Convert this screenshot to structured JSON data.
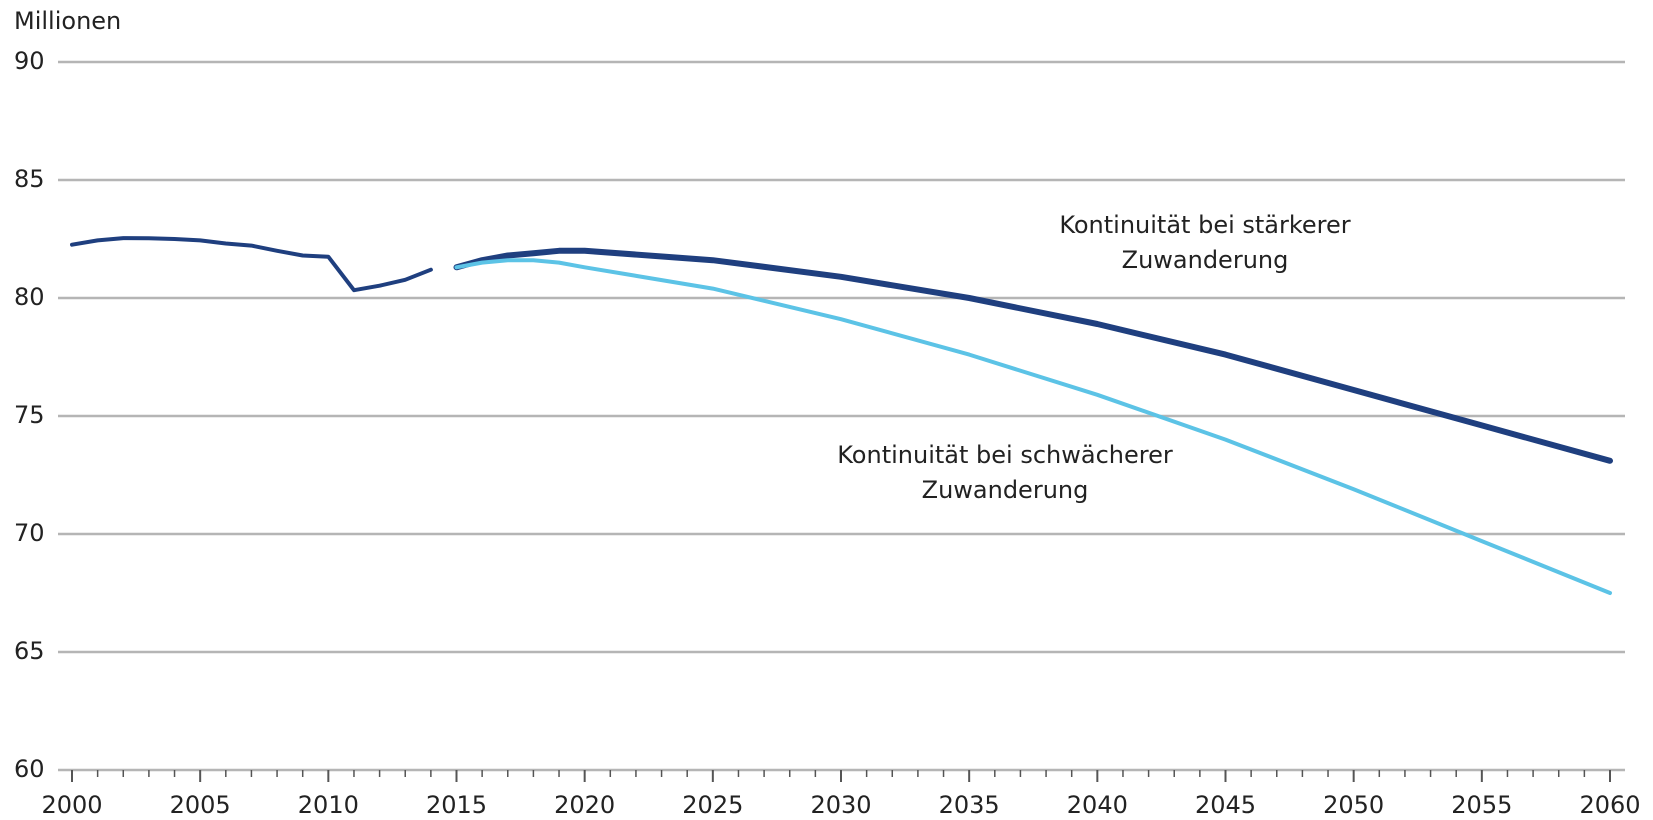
{
  "chart_data": {
    "type": "line",
    "y_label": "Millionen",
    "xlim": [
      2000,
      2060
    ],
    "xticks": [
      2000,
      2005,
      2010,
      2015,
      2020,
      2025,
      2030,
      2035,
      2040,
      2045,
      2050,
      2055,
      2060
    ],
    "ylim": [
      60,
      90
    ],
    "yticks": [
      60,
      65,
      70,
      75,
      80,
      85,
      90
    ],
    "grid": true,
    "series": [
      {
        "color": "#1f3f7f",
        "x": [
          2000,
          2001,
          2002,
          2003,
          2004,
          2005,
          2006,
          2007,
          2008,
          2009,
          2010,
          2011,
          2012,
          2013,
          2014
        ],
        "values": [
          82.26,
          82.44,
          82.54,
          82.53,
          82.5,
          82.44,
          82.31,
          82.22,
          82.0,
          81.8,
          81.75,
          80.33,
          80.52,
          80.77,
          81.2
        ]
      },
      {
        "name_lines": [
          "Kontinuität bei stärkerer",
          "Zuwanderung"
        ],
        "color": "#1f3f7f",
        "x": [
          2015,
          2016,
          2017,
          2018,
          2019,
          2020,
          2025,
          2030,
          2035,
          2040,
          2045,
          2050,
          2055,
          2060
        ],
        "values": [
          81.3,
          81.6,
          81.8,
          81.9,
          82.0,
          82.0,
          81.6,
          80.9,
          80.0,
          78.9,
          77.6,
          76.1,
          74.6,
          73.1
        ]
      },
      {
        "name_lines": [
          "Kontinuität bei schwächerer",
          "Zuwanderung"
        ],
        "color": "#5cc3e6",
        "x": [
          2015,
          2016,
          2017,
          2018,
          2019,
          2020,
          2025,
          2030,
          2035,
          2040,
          2045,
          2050,
          2055,
          2060
        ],
        "values": [
          81.3,
          81.5,
          81.6,
          81.6,
          81.5,
          81.3,
          80.4,
          79.1,
          77.6,
          75.9,
          74.0,
          71.9,
          69.7,
          67.5
        ]
      }
    ]
  }
}
